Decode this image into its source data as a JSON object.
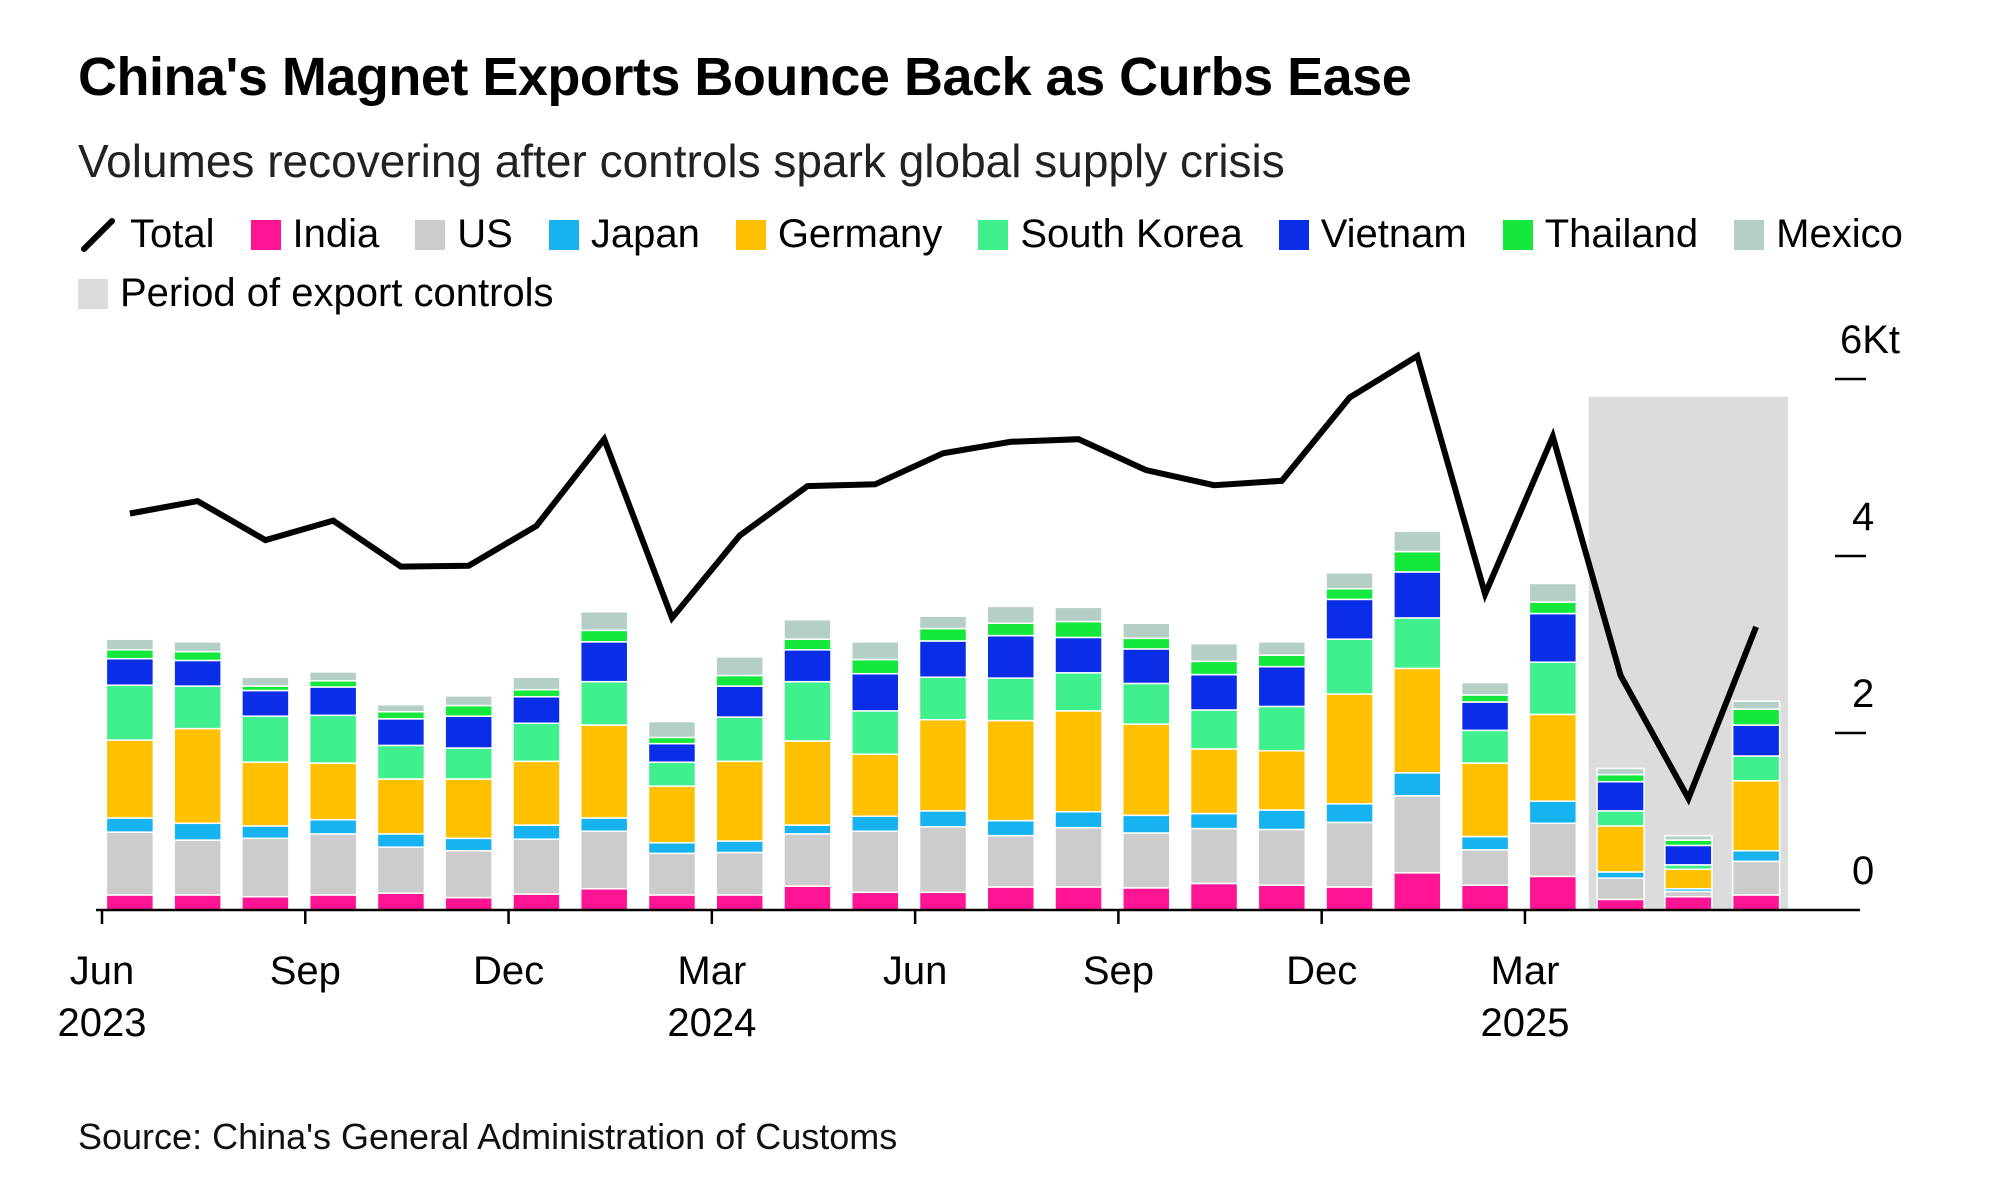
{
  "header": {
    "title": "China's Magnet Exports Bounce Back as Curbs Ease",
    "subtitle": "Volumes recovering after controls spark global supply crisis"
  },
  "legend": [
    {
      "label": "Total",
      "color": "#000000",
      "kind": "line"
    },
    {
      "label": "India",
      "color": "#ff1493",
      "kind": "box"
    },
    {
      "label": "US",
      "color": "#cccccc",
      "kind": "box"
    },
    {
      "label": "Japan",
      "color": "#17b2f0",
      "kind": "box"
    },
    {
      "label": "Germany",
      "color": "#ffc000",
      "kind": "box"
    },
    {
      "label": "South Korea",
      "color": "#3ff08d",
      "kind": "box"
    },
    {
      "label": "Vietnam",
      "color": "#0a2ee8",
      "kind": "box"
    },
    {
      "label": "Thailand",
      "color": "#14e83c",
      "kind": "box"
    },
    {
      "label": "Mexico",
      "color": "#b5cfc6",
      "kind": "box"
    },
    {
      "label": "Period of export controls",
      "color": "#dcdcdc",
      "kind": "box"
    }
  ],
  "source": "Source: China's General Administration of Customs",
  "chart_data": {
    "type": "bar",
    "stacked": true,
    "categories": [
      "2023-06",
      "2023-07",
      "2023-08",
      "2023-09",
      "2023-10",
      "2023-11",
      "2023-12",
      "2024-01",
      "2024-02",
      "2024-03",
      "2024-04",
      "2024-05",
      "2024-06",
      "2024-07",
      "2024-08",
      "2024-09",
      "2024-10",
      "2024-11",
      "2024-12",
      "2025-01",
      "2025-02",
      "2025-03",
      "2025-04",
      "2025-05",
      "2025-06"
    ],
    "x_tick_labels": [
      {
        "index": 0,
        "month": "Jun",
        "year": "2023"
      },
      {
        "index": 3,
        "month": "Sep",
        "year": ""
      },
      {
        "index": 6,
        "month": "Dec",
        "year": ""
      },
      {
        "index": 9,
        "month": "Mar",
        "year": "2024"
      },
      {
        "index": 12,
        "month": "Jun",
        "year": ""
      },
      {
        "index": 15,
        "month": "Sep",
        "year": ""
      },
      {
        "index": 18,
        "month": "Dec",
        "year": ""
      },
      {
        "index": 21,
        "month": "Mar",
        "year": "2025"
      }
    ],
    "y_ticks": [
      {
        "value": 0,
        "label": "0"
      },
      {
        "value": 2,
        "label": "2"
      },
      {
        "value": 4,
        "label": "4"
      },
      {
        "value": 6,
        "label": "6Kt"
      }
    ],
    "ylim": [
      0,
      6.4
    ],
    "grid": false,
    "y_axis_position": "right",
    "shaded_period": {
      "label": "Period of export controls",
      "start": "2025-04",
      "end": "2025-06"
    },
    "series": [
      {
        "name": "India",
        "color": "#ff1493",
        "values": [
          0.17,
          0.17,
          0.15,
          0.17,
          0.19,
          0.14,
          0.18,
          0.24,
          0.17,
          0.17,
          0.27,
          0.2,
          0.2,
          0.26,
          0.26,
          0.25,
          0.3,
          0.28,
          0.26,
          0.42,
          0.28,
          0.38,
          0.12,
          0.15,
          0.17
        ]
      },
      {
        "name": "US",
        "color": "#cccccc",
        "values": [
          0.71,
          0.62,
          0.66,
          0.69,
          0.52,
          0.53,
          0.62,
          0.65,
          0.47,
          0.48,
          0.59,
          0.69,
          0.74,
          0.58,
          0.67,
          0.62,
          0.62,
          0.63,
          0.73,
          0.87,
          0.4,
          0.6,
          0.24,
          0.06,
          0.38
        ]
      },
      {
        "name": "Japan",
        "color": "#17b2f0",
        "values": [
          0.16,
          0.19,
          0.14,
          0.16,
          0.15,
          0.14,
          0.16,
          0.15,
          0.12,
          0.13,
          0.1,
          0.17,
          0.18,
          0.17,
          0.18,
          0.2,
          0.17,
          0.22,
          0.21,
          0.26,
          0.15,
          0.25,
          0.07,
          0.03,
          0.12
        ]
      },
      {
        "name": "Germany",
        "color": "#ffc000",
        "values": [
          0.88,
          1.07,
          0.72,
          0.64,
          0.62,
          0.67,
          0.72,
          1.05,
          0.64,
          0.9,
          0.95,
          0.7,
          1.03,
          1.13,
          1.14,
          1.03,
          0.73,
          0.67,
          1.24,
          1.18,
          0.83,
          0.98,
          0.52,
          0.22,
          0.79
        ]
      },
      {
        "name": "South Korea",
        "color": "#3ff08d",
        "values": [
          0.62,
          0.48,
          0.52,
          0.54,
          0.38,
          0.35,
          0.43,
          0.49,
          0.27,
          0.5,
          0.67,
          0.49,
          0.48,
          0.48,
          0.43,
          0.46,
          0.44,
          0.5,
          0.62,
          0.57,
          0.37,
          0.59,
          0.17,
          0.05,
          0.28
        ]
      },
      {
        "name": "Vietnam",
        "color": "#0a2ee8",
        "values": [
          0.3,
          0.29,
          0.29,
          0.32,
          0.3,
          0.36,
          0.3,
          0.45,
          0.21,
          0.35,
          0.36,
          0.42,
          0.41,
          0.48,
          0.4,
          0.39,
          0.4,
          0.45,
          0.45,
          0.52,
          0.32,
          0.55,
          0.33,
          0.22,
          0.35
        ]
      },
      {
        "name": "Thailand",
        "color": "#14e83c",
        "values": [
          0.1,
          0.1,
          0.05,
          0.07,
          0.08,
          0.12,
          0.08,
          0.13,
          0.07,
          0.12,
          0.12,
          0.16,
          0.14,
          0.14,
          0.18,
          0.12,
          0.15,
          0.13,
          0.12,
          0.23,
          0.08,
          0.13,
          0.08,
          0.06,
          0.18
        ]
      },
      {
        "name": "Mexico",
        "color": "#b5cfc6",
        "values": [
          0.12,
          0.11,
          0.1,
          0.1,
          0.08,
          0.11,
          0.14,
          0.21,
          0.18,
          0.21,
          0.22,
          0.2,
          0.14,
          0.19,
          0.16,
          0.17,
          0.2,
          0.15,
          0.18,
          0.23,
          0.14,
          0.21,
          0.07,
          0.05,
          0.09
        ]
      }
    ],
    "line_series": {
      "name": "Total",
      "color": "#000000",
      "values": [
        4.48,
        4.62,
        4.18,
        4.4,
        3.88,
        3.89,
        4.34,
        5.32,
        3.3,
        4.23,
        4.79,
        4.81,
        5.16,
        5.29,
        5.32,
        4.97,
        4.8,
        4.85,
        5.79,
        6.26,
        3.57,
        5.35,
        2.65,
        1.26,
        3.2
      ]
    }
  }
}
